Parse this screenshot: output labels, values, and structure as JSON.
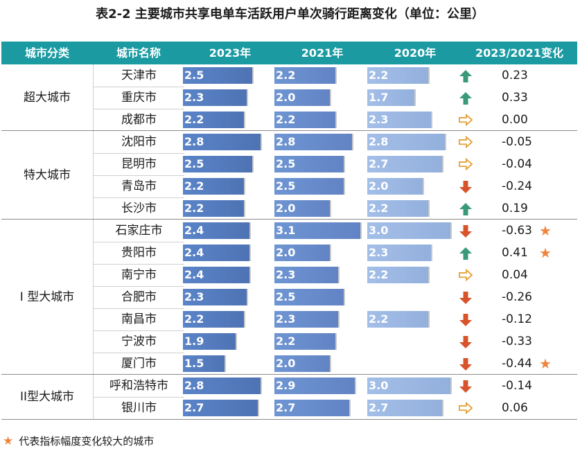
{
  "title": "表2-2 主要城市共享电单车活跃用户单次骑行距离变化（单位：公里）",
  "columns": [
    "城市分类",
    "城市名称",
    "2023年",
    "2021年",
    "2020年",
    "2023/2021变化"
  ],
  "colors": {
    "header": "#1b9aa2",
    "up": "#3a9a78",
    "down": "#d9532a",
    "flat": "#e3a23a",
    "star": "#f0843c"
  },
  "categories": [
    {
      "name": "超大城市",
      "rows": [
        0,
        2
      ]
    },
    {
      "name": "特大城市",
      "rows": [
        3,
        6
      ]
    },
    {
      "name": "I 型大城市",
      "rows": [
        7,
        13
      ]
    },
    {
      "name": "II型大城市",
      "rows": [
        14,
        15
      ]
    }
  ],
  "rows": [
    {
      "city": "天津市",
      "v2023": "2.5",
      "v2021": "2.2",
      "v2020": "2.2",
      "trend": "up",
      "change": "0.23",
      "star": false
    },
    {
      "city": "重庆市",
      "v2023": "2.3",
      "v2021": "2.0",
      "v2020": "1.7",
      "trend": "up",
      "change": "0.33",
      "star": false
    },
    {
      "city": "成都市",
      "v2023": "2.2",
      "v2021": "2.2",
      "v2020": "2.3",
      "trend": "flat",
      "change": "0.00",
      "star": false
    },
    {
      "city": "沈阳市",
      "v2023": "2.8",
      "v2021": "2.8",
      "v2020": "2.8",
      "trend": "flat",
      "change": "-0.05",
      "star": false
    },
    {
      "city": "昆明市",
      "v2023": "2.5",
      "v2021": "2.5",
      "v2020": "2.7",
      "trend": "flat",
      "change": "-0.04",
      "star": false
    },
    {
      "city": "青岛市",
      "v2023": "2.2",
      "v2021": "2.5",
      "v2020": "2.0",
      "trend": "down",
      "change": "-0.24",
      "star": false
    },
    {
      "city": "长沙市",
      "v2023": "2.2",
      "v2021": "2.0",
      "v2020": "2.2",
      "trend": "up",
      "change": "0.19",
      "star": false
    },
    {
      "city": "石家庄市",
      "v2023": "2.4",
      "v2021": "3.1",
      "v2020": "3.0",
      "trend": "down",
      "change": "-0.63",
      "star": true
    },
    {
      "city": "贵阳市",
      "v2023": "2.4",
      "v2021": "2.0",
      "v2020": "2.3",
      "trend": "up",
      "change": "0.41",
      "star": true
    },
    {
      "city": "南宁市",
      "v2023": "2.4",
      "v2021": "2.3",
      "v2020": "2.2",
      "trend": "flat",
      "change": "0.04",
      "star": false
    },
    {
      "city": "合肥市",
      "v2023": "2.3",
      "v2021": "2.5",
      "v2020": "",
      "trend": "down",
      "change": "-0.26",
      "star": false
    },
    {
      "city": "南昌市",
      "v2023": "2.2",
      "v2021": "2.3",
      "v2020": "2.2",
      "trend": "down",
      "change": "-0.12",
      "star": false
    },
    {
      "city": "宁波市",
      "v2023": "1.9",
      "v2021": "2.2",
      "v2020": "",
      "trend": "down",
      "change": "-0.33",
      "star": false
    },
    {
      "city": "厦门市",
      "v2023": "1.5",
      "v2021": "2.0",
      "v2020": "",
      "trend": "down",
      "change": "-0.44",
      "star": true
    },
    {
      "city": "呼和浩特市",
      "v2023": "2.8",
      "v2021": "2.9",
      "v2020": "3.0",
      "trend": "down",
      "change": "-0.14",
      "star": false
    },
    {
      "city": "银川市",
      "v2023": "2.7",
      "v2021": "2.7",
      "v2020": "2.7",
      "trend": "flat",
      "change": "0.06",
      "star": false
    }
  ],
  "footnote": {
    "symbol": "★",
    "text": "代表指标幅度变化较大的城市"
  }
}
